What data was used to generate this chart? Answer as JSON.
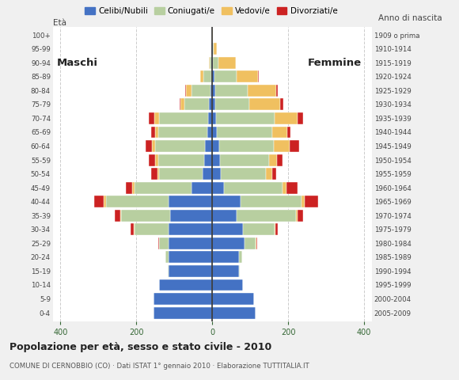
{
  "age_groups": [
    "0-4",
    "5-9",
    "10-14",
    "15-19",
    "20-24",
    "25-29",
    "30-34",
    "35-39",
    "40-44",
    "45-49",
    "50-54",
    "55-59",
    "60-64",
    "65-69",
    "70-74",
    "75-79",
    "80-84",
    "85-89",
    "90-94",
    "95-99",
    "100+"
  ],
  "birth_years": [
    "2005-2009",
    "2000-2004",
    "1995-1999",
    "1990-1994",
    "1985-1989",
    "1980-1984",
    "1975-1979",
    "1970-1974",
    "1965-1969",
    "1960-1964",
    "1955-1959",
    "1950-1954",
    "1945-1949",
    "1940-1944",
    "1935-1939",
    "1930-1934",
    "1925-1929",
    "1920-1924",
    "1915-1919",
    "1910-1914",
    "1909 o prima"
  ],
  "males": {
    "celibe": [
      155,
      155,
      140,
      115,
      115,
      115,
      115,
      110,
      115,
      55,
      25,
      22,
      20,
      12,
      10,
      8,
      5,
      3,
      2,
      2,
      0
    ],
    "coniugato": [
      0,
      0,
      0,
      2,
      8,
      25,
      90,
      130,
      165,
      150,
      115,
      120,
      130,
      130,
      130,
      65,
      50,
      20,
      5,
      0,
      0
    ],
    "vedovo": [
      0,
      0,
      0,
      0,
      0,
      0,
      2,
      2,
      5,
      5,
      5,
      8,
      8,
      8,
      12,
      10,
      15,
      8,
      2,
      0,
      0
    ],
    "divorziato": [
      0,
      0,
      0,
      0,
      0,
      2,
      8,
      15,
      25,
      18,
      15,
      18,
      18,
      12,
      15,
      2,
      2,
      0,
      0,
      0,
      0
    ]
  },
  "females": {
    "celibe": [
      115,
      110,
      80,
      70,
      70,
      85,
      80,
      65,
      75,
      30,
      22,
      20,
      18,
      12,
      10,
      8,
      8,
      5,
      2,
      2,
      0
    ],
    "coniugato": [
      0,
      0,
      0,
      2,
      8,
      30,
      85,
      155,
      160,
      155,
      120,
      130,
      145,
      145,
      155,
      90,
      85,
      60,
      15,
      2,
      0
    ],
    "vedovo": [
      0,
      0,
      0,
      0,
      0,
      2,
      2,
      5,
      8,
      10,
      15,
      20,
      40,
      40,
      60,
      80,
      75,
      55,
      45,
      8,
      2
    ],
    "divorziato": [
      0,
      0,
      0,
      0,
      0,
      2,
      5,
      15,
      35,
      30,
      12,
      15,
      25,
      8,
      15,
      8,
      5,
      2,
      0,
      0,
      0
    ]
  },
  "colors": {
    "celibe": "#4472c4",
    "coniugato": "#b8cfa0",
    "vedovo": "#f0c060",
    "divorziato": "#cc2222"
  },
  "xlim": 420,
  "title": "Popolazione per età, sesso e stato civile - 2010",
  "subtitle": "COMUNE DI CERNOBBIO (CO) · Dati ISTAT 1° gennaio 2010 · Elaborazione TUTTITALIA.IT",
  "legend_labels": [
    "Celibi/Nubili",
    "Coniugati/e",
    "Vedovi/e",
    "Divorziati/e"
  ],
  "ylabel_left": "Età",
  "ylabel_right": "Anno di nascita",
  "label_maschi": "Maschi",
  "label_femmine": "Femmine",
  "bg_color": "#f0f0f0",
  "plot_bg_color": "#ffffff"
}
